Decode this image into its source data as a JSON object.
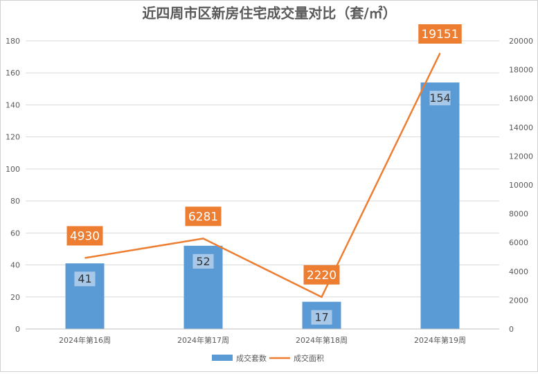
{
  "chart_data": {
    "type": "bar",
    "title": "近四周市区新房住宅成交量对比（套/㎡）",
    "categories": [
      "2024年第16周",
      "2024年第17周",
      "2024年第18周",
      "2024年第19周"
    ],
    "series": [
      {
        "name": "成交套数",
        "type": "bar",
        "axis": "left",
        "color": "#5B9BD5",
        "values": [
          41,
          52,
          17,
          154
        ]
      },
      {
        "name": "成交面积",
        "type": "line",
        "axis": "right",
        "color": "#ED7D31",
        "values": [
          4930,
          6281,
          2220,
          19151
        ]
      }
    ],
    "y_left": {
      "min": 0,
      "max": 180,
      "step": 20
    },
    "y_right": {
      "min": 0,
      "max": 20000,
      "step": 2000
    },
    "grid": true,
    "legend_position": "bottom"
  }
}
